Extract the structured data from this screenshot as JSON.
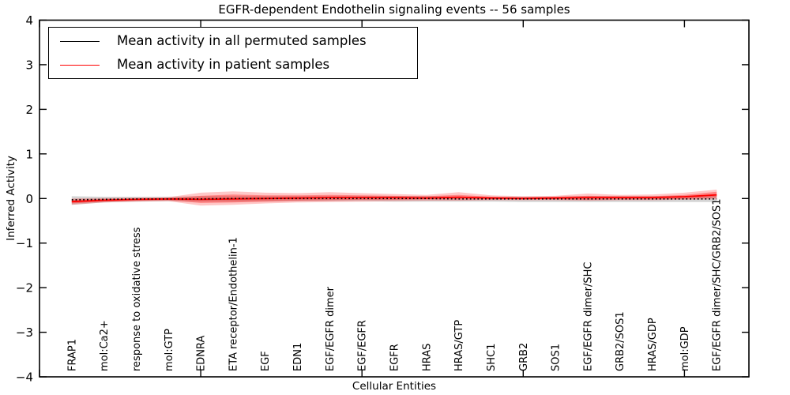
{
  "figure": {
    "background": "#ffffff"
  },
  "chart_data": {
    "type": "line",
    "title": "EGFR-dependent Endothelin signaling events -- 56 samples",
    "xlabel": "Cellular Entities",
    "ylabel": "Inferred Activity",
    "ylim": [
      -4,
      4
    ],
    "yticks": [
      4,
      3,
      2,
      1,
      0,
      -1,
      -2,
      -3,
      -4
    ],
    "xlim_units": [
      0,
      22
    ],
    "xticks_units": [
      0,
      5,
      10,
      15,
      20
    ],
    "grid": false,
    "legend_position": "upper left",
    "axis_color": "#000000",
    "categories": [
      "FRAP1",
      "mol:Ca2+",
      "response to oxidative stress",
      "mol:GTP",
      "EDNRA",
      "ETA receptor/Endothelin-1",
      "EGF",
      "EDN1",
      "EGF/EGFR dimer",
      "EGF/EGFR",
      "EGFR",
      "HRAS",
      "HRAS/GTP",
      "SHC1",
      "GRB2",
      "SOS1",
      "EGF/EGFR dimer/SHC",
      "GRB2/SOS1",
      "HRAS/GDP",
      "mol:GDP",
      "EGF/EGFR dimer/SHC/GRB2/SOS1"
    ],
    "series": [
      {
        "name": "Mean activity in all permuted samples",
        "color": "#000000",
        "style": "dotted",
        "values": [
          -0.03,
          -0.02,
          -0.01,
          -0.01,
          -0.01,
          0,
          0,
          0,
          0,
          0,
          0,
          0,
          -0.01,
          -0.01,
          -0.01,
          -0.01,
          -0.01,
          -0.01,
          -0.01,
          -0.01,
          -0.01
        ],
        "band_upper": [
          0.05,
          0.04,
          0.04,
          0.04,
          0.05,
          0.05,
          0.05,
          0.05,
          0.05,
          0.05,
          0.05,
          0.05,
          0.04,
          0.04,
          0.04,
          0.04,
          0.05,
          0.05,
          0.05,
          0.06,
          0.06
        ],
        "band_lower": [
          -0.14,
          -0.09,
          -0.07,
          -0.06,
          -0.07,
          -0.07,
          -0.06,
          -0.06,
          -0.06,
          -0.06,
          -0.07,
          -0.07,
          -0.07,
          -0.07,
          -0.08,
          -0.08,
          -0.08,
          -0.08,
          -0.08,
          -0.08,
          -0.08
        ],
        "band_color": "#888888",
        "band_opacity": 0.35
      },
      {
        "name": "Mean activity in patient samples",
        "color": "#ff0000",
        "style": "solid",
        "values": [
          -0.07,
          -0.04,
          -0.02,
          -0.01,
          -0.02,
          -0.01,
          0.0,
          0.01,
          0.02,
          0.02,
          0.02,
          0.01,
          0.03,
          0.01,
          0.0,
          0.01,
          0.02,
          0.02,
          0.02,
          0.04,
          0.08
        ],
        "band_upper": [
          0.0,
          0.01,
          0.02,
          0.03,
          0.13,
          0.16,
          0.13,
          0.12,
          0.14,
          0.12,
          0.1,
          0.08,
          0.14,
          0.07,
          0.05,
          0.06,
          0.11,
          0.08,
          0.09,
          0.13,
          0.2
        ],
        "band_lower": [
          -0.14,
          -0.09,
          -0.07,
          -0.06,
          -0.16,
          -0.14,
          -0.11,
          -0.09,
          -0.08,
          -0.07,
          -0.06,
          -0.05,
          -0.05,
          -0.04,
          -0.04,
          -0.04,
          -0.05,
          -0.04,
          -0.04,
          -0.03,
          -0.02
        ],
        "band_inner_upper": [
          -0.03,
          -0.01,
          0.0,
          0.01,
          0.06,
          0.09,
          0.07,
          0.07,
          0.08,
          0.07,
          0.06,
          0.05,
          0.08,
          0.04,
          0.03,
          0.04,
          0.06,
          0.05,
          0.05,
          0.08,
          0.15
        ],
        "band_inner_lower": [
          -0.11,
          -0.07,
          -0.05,
          -0.04,
          -0.1,
          -0.09,
          -0.07,
          -0.05,
          -0.04,
          -0.03,
          -0.03,
          -0.02,
          -0.02,
          -0.02,
          -0.02,
          -0.02,
          -0.03,
          -0.02,
          -0.02,
          -0.01,
          0.02
        ],
        "band_color": "#ff0000",
        "band_opacity": 0.22
      }
    ]
  }
}
